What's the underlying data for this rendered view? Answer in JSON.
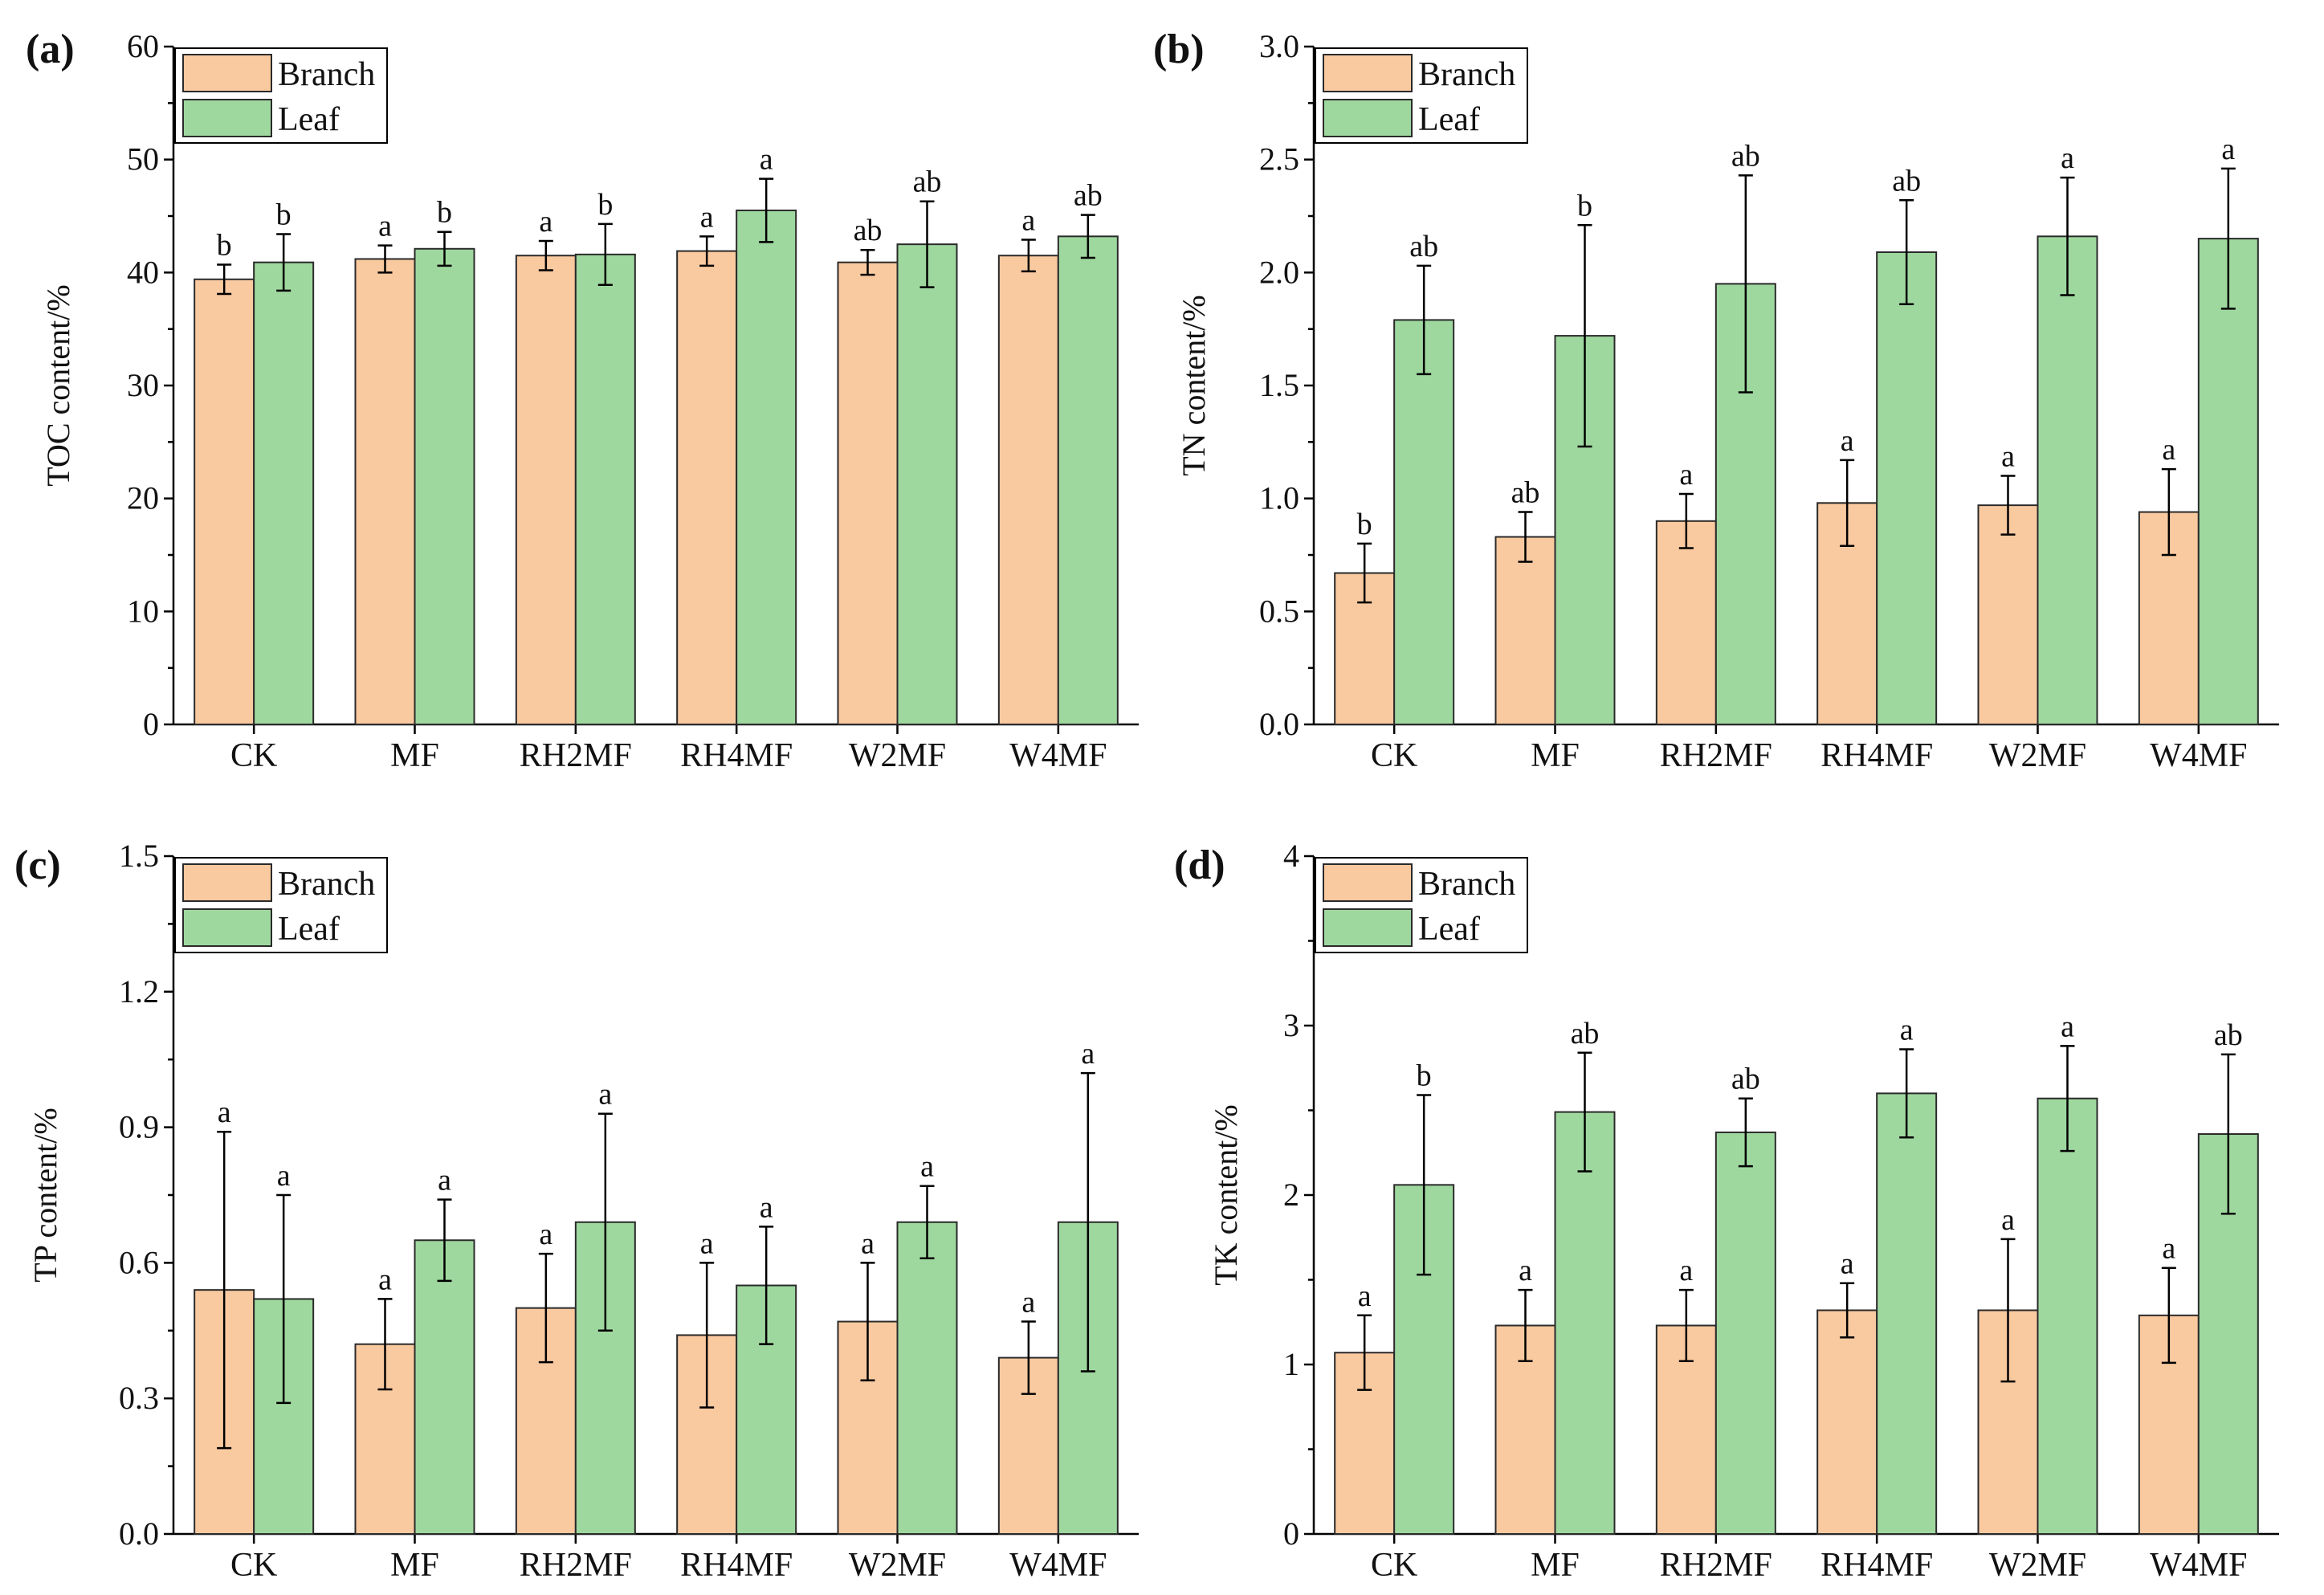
{
  "colors": {
    "branch": "#F9C9A0",
    "leaf": "#9FD89F"
  },
  "chart_data": [
    {
      "type": "bar",
      "panel_label": "(a)",
      "ylabel": "TOC content/%",
      "ylim": [
        0,
        60
      ],
      "yticks": [
        "0",
        "10",
        "20",
        "30",
        "40",
        "50",
        "60"
      ],
      "categories": [
        "CK",
        "MF",
        "RH2MF",
        "RH4MF",
        "W2MF",
        "W4MF"
      ],
      "legend": {
        "position": "top-left",
        "entries": [
          "Branch",
          "Leaf"
        ]
      },
      "series": [
        {
          "name": "Branch",
          "values": [
            39.4,
            41.2,
            41.5,
            41.9,
            40.9,
            41.5
          ],
          "errors": [
            1.3,
            1.2,
            1.3,
            1.3,
            1.1,
            1.4
          ],
          "labels": [
            "b",
            "a",
            "a",
            "a",
            "ab",
            "a"
          ]
        },
        {
          "name": "Leaf",
          "values": [
            40.9,
            42.1,
            41.6,
            45.5,
            42.5,
            43.2
          ],
          "errors": [
            2.5,
            1.5,
            2.7,
            2.8,
            3.8,
            1.9
          ],
          "labels": [
            "b",
            "b",
            "b",
            "a",
            "ab",
            "ab"
          ]
        }
      ]
    },
    {
      "type": "bar",
      "panel_label": "(b)",
      "ylabel": "TN content/%",
      "ylim": [
        0,
        3.0
      ],
      "yticks": [
        "0.0",
        "0.5",
        "1.0",
        "1.5",
        "2.0",
        "2.5",
        "3.0"
      ],
      "categories": [
        "CK",
        "MF",
        "RH2MF",
        "RH4MF",
        "W2MF",
        "W4MF"
      ],
      "legend": {
        "position": "top-left",
        "entries": [
          "Branch",
          "Leaf"
        ]
      },
      "series": [
        {
          "name": "Branch",
          "values": [
            0.67,
            0.83,
            0.9,
            0.98,
            0.97,
            0.94
          ],
          "errors": [
            0.13,
            0.11,
            0.12,
            0.19,
            0.13,
            0.19
          ],
          "labels": [
            "b",
            "ab",
            "a",
            "a",
            "a",
            "a"
          ]
        },
        {
          "name": "Leaf",
          "values": [
            1.79,
            1.72,
            1.95,
            2.09,
            2.16,
            2.15
          ],
          "errors": [
            0.24,
            0.49,
            0.48,
            0.23,
            0.26,
            0.31
          ],
          "labels": [
            "ab",
            "b",
            "ab",
            "ab",
            "a",
            "a"
          ]
        }
      ]
    },
    {
      "type": "bar",
      "panel_label": "(c)",
      "ylabel": "TP content/%",
      "ylim": [
        0,
        1.5
      ],
      "yticks": [
        "0.0",
        "0.3",
        "0.6",
        "0.9",
        "1.2",
        "1.5"
      ],
      "categories": [
        "CK",
        "MF",
        "RH2MF",
        "RH4MF",
        "W2MF",
        "W4MF"
      ],
      "legend": {
        "position": "top-left",
        "entries": [
          "Branch",
          "Leaf"
        ]
      },
      "series": [
        {
          "name": "Branch",
          "values": [
            0.54,
            0.42,
            0.5,
            0.44,
            0.47,
            0.39
          ],
          "errors": [
            0.35,
            0.1,
            0.12,
            0.16,
            0.13,
            0.08
          ],
          "labels": [
            "a",
            "a",
            "a",
            "a",
            "a",
            "a"
          ]
        },
        {
          "name": "Leaf",
          "values": [
            0.52,
            0.65,
            0.69,
            0.55,
            0.69,
            0.69
          ],
          "errors": [
            0.23,
            0.09,
            0.24,
            0.13,
            0.08,
            0.33
          ],
          "labels": [
            "a",
            "a",
            "a",
            "a",
            "a",
            "a"
          ]
        }
      ]
    },
    {
      "type": "bar",
      "panel_label": "(d)",
      "ylabel": "TK content/%",
      "ylim": [
        0,
        4
      ],
      "yticks": [
        "0",
        "1",
        "2",
        "3",
        "4"
      ],
      "categories": [
        "CK",
        "MF",
        "RH2MF",
        "RH4MF",
        "W2MF",
        "W4MF"
      ],
      "legend": {
        "position": "top-left",
        "entries": [
          "Branch",
          "Leaf"
        ]
      },
      "series": [
        {
          "name": "Branch",
          "values": [
            1.07,
            1.23,
            1.23,
            1.32,
            1.32,
            1.29
          ],
          "errors": [
            0.22,
            0.21,
            0.21,
            0.16,
            0.42,
            0.28
          ],
          "labels": [
            "a",
            "a",
            "a",
            "a",
            "a",
            "a"
          ]
        },
        {
          "name": "Leaf",
          "values": [
            2.06,
            2.49,
            2.37,
            2.6,
            2.57,
            2.36
          ],
          "errors": [
            0.53,
            0.35,
            0.2,
            0.26,
            0.31,
            0.47
          ],
          "labels": [
            "b",
            "ab",
            "ab",
            "a",
            "a",
            "ab"
          ]
        }
      ]
    }
  ]
}
